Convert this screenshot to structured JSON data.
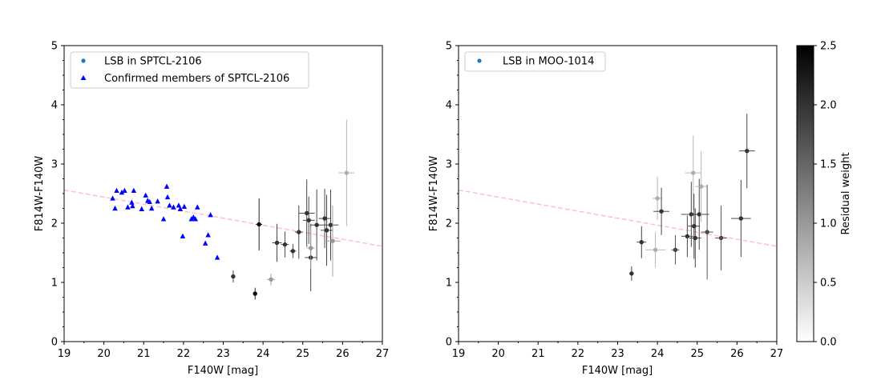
{
  "chart_data": [
    {
      "type": "scatter",
      "title": "",
      "xlabel": "F140W [mag]",
      "ylabel": "F814W-F140W",
      "xlim": [
        19,
        27
      ],
      "ylim": [
        0,
        5
      ],
      "xticks": [
        "19",
        "20",
        "21",
        "22",
        "23",
        "24",
        "25",
        "26",
        "27"
      ],
      "yticks": [
        "0",
        "1",
        "2",
        "3",
        "4",
        "5"
      ],
      "legend": [
        "LSB in SPTCL-2106",
        "Confirmed members of SPTCL-2106"
      ],
      "legend_position": "top-left",
      "trend_line": {
        "x": [
          19,
          27
        ],
        "y": [
          2.56,
          1.61
        ],
        "color": "#ffc0cb",
        "style": "dashed"
      },
      "series": [
        {
          "name": "LSB in SPTCL-2106",
          "marker": "circle",
          "color_by": "residual_weight",
          "points": [
            {
              "x": 23.25,
              "y": 1.1,
              "xerr": 0.05,
              "yerr": 0.1,
              "w": 2.0
            },
            {
              "x": 23.8,
              "y": 0.81,
              "xerr": 0.05,
              "yerr": 0.1,
              "w": 2.4
            },
            {
              "x": 23.9,
              "y": 1.98,
              "xerr": 0.08,
              "yerr": 0.44,
              "w": 2.4
            },
            {
              "x": 24.2,
              "y": 1.05,
              "xerr": 0.1,
              "yerr": 0.1,
              "w": 1.0
            },
            {
              "x": 24.35,
              "y": 1.67,
              "xerr": 0.12,
              "yerr": 0.32,
              "w": 2.0
            },
            {
              "x": 24.55,
              "y": 1.64,
              "xerr": 0.1,
              "yerr": 0.22,
              "w": 2.0
            },
            {
              "x": 24.75,
              "y": 1.53,
              "xerr": 0.08,
              "yerr": 0.12,
              "w": 2.0
            },
            {
              "x": 24.9,
              "y": 1.85,
              "xerr": 0.1,
              "yerr": 0.45,
              "w": 2.0
            },
            {
              "x": 25.1,
              "y": 2.17,
              "xerr": 0.2,
              "yerr": 0.57,
              "w": 2.0
            },
            {
              "x": 25.15,
              "y": 2.05,
              "xerr": 0.15,
              "yerr": 0.4,
              "w": 2.0
            },
            {
              "x": 25.2,
              "y": 1.42,
              "xerr": 0.15,
              "yerr": 0.57,
              "w": 2.0
            },
            {
              "x": 25.2,
              "y": 1.58,
              "xerr": 0.1,
              "yerr": 0.35,
              "w": 1.0
            },
            {
              "x": 25.35,
              "y": 1.97,
              "xerr": 0.15,
              "yerr": 0.6,
              "w": 2.0
            },
            {
              "x": 25.55,
              "y": 2.08,
              "xerr": 0.15,
              "yerr": 0.5,
              "w": 2.0
            },
            {
              "x": 25.6,
              "y": 1.88,
              "xerr": 0.15,
              "yerr": 0.6,
              "w": 2.0
            },
            {
              "x": 25.7,
              "y": 1.97,
              "xerr": 0.2,
              "yerr": 0.6,
              "w": 2.0
            },
            {
              "x": 25.75,
              "y": 1.7,
              "xerr": 0.2,
              "yerr": 0.6,
              "w": 1.0
            },
            {
              "x": 26.1,
              "y": 2.85,
              "xerr": 0.2,
              "yerr": 0.9,
              "w": 0.8
            }
          ]
        },
        {
          "name": "Confirmed members of SPTCL-2106",
          "marker": "triangle",
          "color": "#0000ff",
          "points": [
            {
              "x": 20.22,
              "y": 2.42
            },
            {
              "x": 20.28,
              "y": 2.25
            },
            {
              "x": 20.32,
              "y": 2.55
            },
            {
              "x": 20.45,
              "y": 2.52
            },
            {
              "x": 20.52,
              "y": 2.55
            },
            {
              "x": 20.6,
              "y": 2.27
            },
            {
              "x": 20.7,
              "y": 2.35
            },
            {
              "x": 20.72,
              "y": 2.29
            },
            {
              "x": 20.75,
              "y": 2.55
            },
            {
              "x": 20.95,
              "y": 2.24
            },
            {
              "x": 21.05,
              "y": 2.47
            },
            {
              "x": 21.1,
              "y": 2.38
            },
            {
              "x": 21.15,
              "y": 2.36
            },
            {
              "x": 21.2,
              "y": 2.25
            },
            {
              "x": 21.35,
              "y": 2.37
            },
            {
              "x": 21.5,
              "y": 2.07
            },
            {
              "x": 21.58,
              "y": 2.62
            },
            {
              "x": 21.6,
              "y": 2.44
            },
            {
              "x": 21.65,
              "y": 2.3
            },
            {
              "x": 21.75,
              "y": 2.27
            },
            {
              "x": 21.88,
              "y": 2.3
            },
            {
              "x": 21.92,
              "y": 2.24
            },
            {
              "x": 21.98,
              "y": 1.78
            },
            {
              "x": 22.02,
              "y": 2.28
            },
            {
              "x": 22.2,
              "y": 2.07
            },
            {
              "x": 22.25,
              "y": 2.1
            },
            {
              "x": 22.3,
              "y": 2.07
            },
            {
              "x": 22.35,
              "y": 2.27
            },
            {
              "x": 22.55,
              "y": 1.66
            },
            {
              "x": 22.62,
              "y": 1.8
            },
            {
              "x": 22.68,
              "y": 2.14
            },
            {
              "x": 22.85,
              "y": 1.42
            }
          ]
        }
      ]
    },
    {
      "type": "scatter",
      "title": "",
      "xlabel": "F140W [mag]",
      "ylabel": "F814W-F140W",
      "xlim": [
        19,
        27
      ],
      "ylim": [
        0,
        5
      ],
      "xticks": [
        "19",
        "20",
        "21",
        "22",
        "23",
        "24",
        "25",
        "26",
        "27"
      ],
      "yticks": [
        "0",
        "1",
        "2",
        "3",
        "4",
        "5"
      ],
      "legend": [
        "LSB in MOO-1014"
      ],
      "legend_position": "top-left",
      "trend_line": {
        "x": [
          19,
          27
        ],
        "y": [
          2.56,
          1.61
        ],
        "color": "#ffc0cb",
        "style": "dashed"
      },
      "series": [
        {
          "name": "LSB in MOO-1014",
          "marker": "circle",
          "color_by": "residual_weight",
          "points": [
            {
              "x": 23.35,
              "y": 1.15,
              "xerr": 0.05,
              "yerr": 0.12,
              "w": 2.0
            },
            {
              "x": 23.6,
              "y": 1.68,
              "xerr": 0.12,
              "yerr": 0.27,
              "w": 2.0
            },
            {
              "x": 23.95,
              "y": 1.55,
              "xerr": 0.25,
              "yerr": 0.3,
              "w": 0.8
            },
            {
              "x": 24.0,
              "y": 2.42,
              "xerr": 0.12,
              "yerr": 0.37,
              "w": 0.8
            },
            {
              "x": 24.1,
              "y": 2.2,
              "xerr": 0.2,
              "yerr": 0.4,
              "w": 2.0
            },
            {
              "x": 24.45,
              "y": 1.55,
              "xerr": 0.1,
              "yerr": 0.25,
              "w": 1.8
            },
            {
              "x": 24.75,
              "y": 1.78,
              "xerr": 0.15,
              "yerr": 0.35,
              "w": 2.0
            },
            {
              "x": 24.85,
              "y": 2.15,
              "xerr": 0.25,
              "yerr": 0.55,
              "w": 2.0
            },
            {
              "x": 24.9,
              "y": 2.85,
              "xerr": 0.2,
              "yerr": 0.63,
              "w": 0.8
            },
            {
              "x": 24.92,
              "y": 1.95,
              "xerr": 0.15,
              "yerr": 0.55,
              "w": 2.0
            },
            {
              "x": 24.95,
              "y": 1.75,
              "xerr": 0.15,
              "yerr": 0.5,
              "w": 2.0
            },
            {
              "x": 25.05,
              "y": 2.15,
              "xerr": 0.25,
              "yerr": 0.6,
              "w": 2.0
            },
            {
              "x": 25.1,
              "y": 2.62,
              "xerr": 0.15,
              "yerr": 0.6,
              "w": 0.8
            },
            {
              "x": 25.25,
              "y": 1.85,
              "xerr": 0.15,
              "yerr": 0.8,
              "w": 1.8
            },
            {
              "x": 25.6,
              "y": 1.75,
              "xerr": 0.15,
              "yerr": 0.55,
              "w": 1.8
            },
            {
              "x": 26.1,
              "y": 2.08,
              "xerr": 0.25,
              "yerr": 0.65,
              "w": 2.0
            },
            {
              "x": 26.25,
              "y": 3.22,
              "xerr": 0.2,
              "yerr": 0.63,
              "w": 2.0
            }
          ]
        }
      ]
    }
  ],
  "colorbar": {
    "label": "Residual weight",
    "range": [
      0,
      2.5
    ],
    "ticks": [
      "0.0",
      "0.5",
      "1.0",
      "1.5",
      "2.0",
      "2.5"
    ],
    "colormap": "Greys"
  }
}
